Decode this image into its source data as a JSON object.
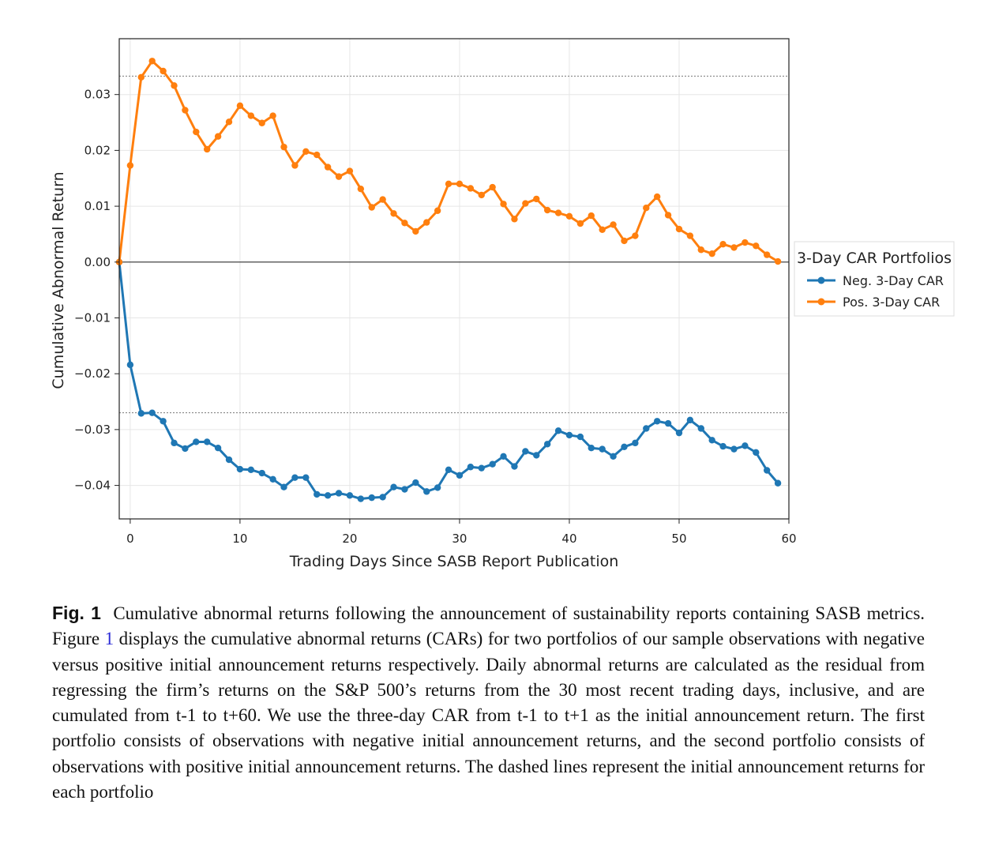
{
  "chart_data": {
    "type": "line",
    "xlabel": "Trading Days Since SASB Report Publication",
    "ylabel": "Cumulative Abnormal Return",
    "xlim": [
      -1,
      60
    ],
    "ylim": [
      -0.046,
      0.04
    ],
    "x_ticks": [
      0,
      10,
      20,
      30,
      40,
      50,
      60
    ],
    "y_ticks": [
      0.03,
      0.02,
      0.01,
      0.0,
      -0.01,
      -0.02,
      -0.03,
      -0.04
    ],
    "y_tick_labels": [
      "0.03",
      "0.02",
      "0.01",
      "0.00",
      "−0.01",
      "−0.02",
      "−0.03",
      "−0.04"
    ],
    "x_tick_labels": [
      "0",
      "10",
      "20",
      "30",
      "40",
      "50",
      "60"
    ],
    "zero_line": 0.0,
    "dashed_lines": [
      0.0333,
      -0.027
    ],
    "x": [
      -1,
      0,
      1,
      2,
      3,
      4,
      5,
      6,
      7,
      8,
      9,
      10,
      11,
      12,
      13,
      14,
      15,
      16,
      17,
      18,
      19,
      20,
      21,
      22,
      23,
      24,
      25,
      26,
      27,
      28,
      29,
      30,
      31,
      32,
      33,
      34,
      35,
      36,
      37,
      38,
      39,
      40,
      41,
      42,
      43,
      44,
      45,
      46,
      47,
      48,
      49,
      50,
      51,
      52,
      53,
      54,
      55,
      56,
      57,
      58,
      59
    ],
    "series": [
      {
        "name": "Neg. 3-Day CAR",
        "color": "#1f77b4",
        "values": [
          0.0,
          -0.0184,
          -0.0271,
          -0.027,
          -0.0285,
          -0.0324,
          -0.0334,
          -0.0322,
          -0.0322,
          -0.0333,
          -0.0354,
          -0.0371,
          -0.0372,
          -0.0378,
          -0.0389,
          -0.0403,
          -0.0386,
          -0.0386,
          -0.0416,
          -0.0418,
          -0.0414,
          -0.0418,
          -0.0424,
          -0.0422,
          -0.0421,
          -0.0403,
          -0.0407,
          -0.0395,
          -0.0411,
          -0.0404,
          -0.0372,
          -0.0382,
          -0.0367,
          -0.0369,
          -0.0362,
          -0.0348,
          -0.0366,
          -0.0339,
          -0.0346,
          -0.0326,
          -0.0302,
          -0.031,
          -0.0313,
          -0.0333,
          -0.0335,
          -0.0348,
          -0.0331,
          -0.0324,
          -0.0298,
          -0.0285,
          -0.0289,
          -0.0306,
          -0.0283,
          -0.0298,
          -0.0319,
          -0.033,
          -0.0335,
          -0.0329,
          -0.0341,
          -0.0373,
          -0.0396
        ]
      },
      {
        "name": "Pos. 3-Day CAR",
        "color": "#ff7f0e",
        "values": [
          0.0,
          0.0173,
          0.0331,
          0.036,
          0.0342,
          0.0316,
          0.0272,
          0.0233,
          0.0202,
          0.0225,
          0.0251,
          0.028,
          0.0262,
          0.0249,
          0.0262,
          0.0206,
          0.0173,
          0.0198,
          0.0192,
          0.017,
          0.0153,
          0.0163,
          0.0131,
          0.0098,
          0.0112,
          0.0087,
          0.007,
          0.0055,
          0.0071,
          0.0092,
          0.014,
          0.014,
          0.0132,
          0.012,
          0.0134,
          0.0104,
          0.0077,
          0.0105,
          0.0113,
          0.0093,
          0.0088,
          0.0082,
          0.0069,
          0.0083,
          0.0058,
          0.0067,
          0.0038,
          0.0047,
          0.0097,
          0.0117,
          0.0084,
          0.0059,
          0.0047,
          0.0022,
          0.0015,
          0.0032,
          0.0026,
          0.0035,
          0.0029,
          0.0013,
          0.0001
        ]
      }
    ],
    "legend": {
      "title": "3-Day CAR Portfolios",
      "entries": [
        "Neg. 3-Day CAR",
        "Pos. 3-Day CAR"
      ],
      "placement": "outside-right"
    }
  },
  "caption": {
    "label": "Fig. 1",
    "text_part1": "Cumulative abnormal returns following the announcement of sustainability reports containing SASB metrics. Figure ",
    "figure_ref": "1",
    "text_part2": " displays the cumulative abnormal returns (CARs) for two portfolios of our sample observations with negative versus positive initial announcement returns respectively. Daily abnormal returns are calculated as the residual from regressing the firm’s returns on the S&P 500’s returns from the 30 most recent trading days, inclusive, and are cumulated from t-1 to t+60. We use the three-day CAR from t-1 to t+1 as the initial announcement return. The first portfolio consists of observations with negative initial announcement returns, and the second portfolio consists of observations with positive initial announcement returns. The dashed lines represent the initial announcement returns for each portfolio"
  }
}
